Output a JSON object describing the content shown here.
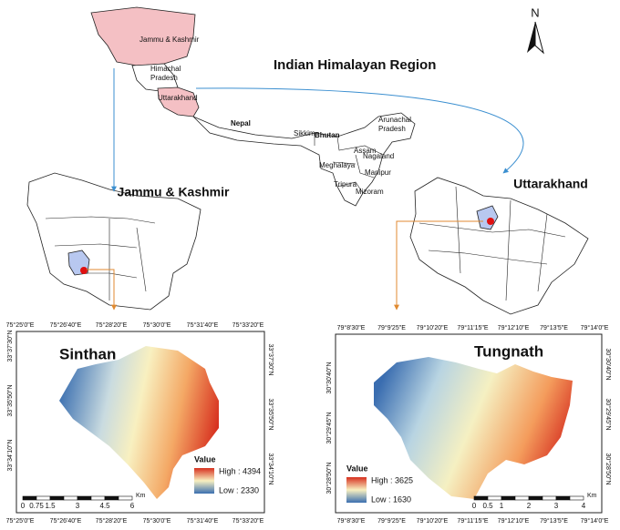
{
  "overview": {
    "title": "Indian Himalayan Region",
    "north": "N",
    "regions": [
      {
        "lines": [
          "Jammu & Kashmir"
        ]
      },
      {
        "lines": [
          "Himachal",
          "Pradesh"
        ]
      },
      {
        "lines": [
          "Uttarakhand"
        ]
      },
      {
        "lines": [
          "Nepal"
        ]
      },
      {
        "lines": [
          "Sikkim"
        ]
      },
      {
        "lines": [
          "Bhutan"
        ]
      },
      {
        "lines": [
          "Arunachal",
          "Pradesh"
        ]
      },
      {
        "lines": [
          "Assam"
        ]
      },
      {
        "lines": [
          "Nagaland"
        ]
      },
      {
        "lines": [
          "Meghalaya"
        ]
      },
      {
        "lines": [
          "Manipur"
        ]
      },
      {
        "lines": [
          "Tripura"
        ]
      },
      {
        "lines": [
          "Mizoram"
        ]
      }
    ]
  },
  "insets": [
    {
      "title": "Jammu & Kashmir"
    },
    {
      "title": "Uttarakhand"
    }
  ],
  "panels": [
    {
      "title": "Sinthan",
      "top_ticks": [
        "75°25'0\"E",
        "75°26'40\"E",
        "75°28'20\"E",
        "75°30'0\"E",
        "75°31'40\"E",
        "75°33'20\"E"
      ],
      "bottom_ticks": [
        "75°25'0\"E",
        "75°26'40\"E",
        "75°28'20\"E",
        "75°30'0\"E",
        "75°31'40\"E",
        "75°33'20\"E"
      ],
      "left_ticks": [
        "33°37'30\"N",
        "33°35'50\"N",
        "33°34'10\"N"
      ],
      "right_ticks": [
        "33°37'30\"N",
        "33°35'50\"N",
        "33°34'10\"N"
      ],
      "legend": {
        "title": "Value",
        "high": "High : 4394",
        "low": "Low : 2330"
      },
      "scale": {
        "labels": [
          "0",
          "0.75",
          "1.5",
          "3",
          "4.5",
          "6"
        ],
        "unit": "Km"
      }
    },
    {
      "title": "Tungnath",
      "top_ticks": [
        "79°8'30\"E",
        "79°9'25\"E",
        "79°10'20\"E",
        "79°11'15\"E",
        "79°12'10\"E",
        "79°13'5\"E",
        "79°14'0\"E"
      ],
      "bottom_ticks": [
        "79°8'30\"E",
        "79°9'25\"E",
        "79°10'20\"E",
        "79°11'15\"E",
        "79°12'10\"E",
        "79°13'5\"E",
        "79°14'0\"E"
      ],
      "left_ticks": [
        "30°30'40\"N",
        "30°29'45\"N",
        "30°28'50\"N"
      ],
      "right_ticks": [
        "30°30'40\"N",
        "30°29'45\"N",
        "30°28'50\"N"
      ],
      "legend": {
        "title": "Value",
        "high": "High : 3625",
        "low": "Low : 1630"
      },
      "scale": {
        "labels": [
          "0",
          "0.5",
          "1",
          "2",
          "3",
          "4"
        ],
        "unit": "Km"
      }
    }
  ]
}
